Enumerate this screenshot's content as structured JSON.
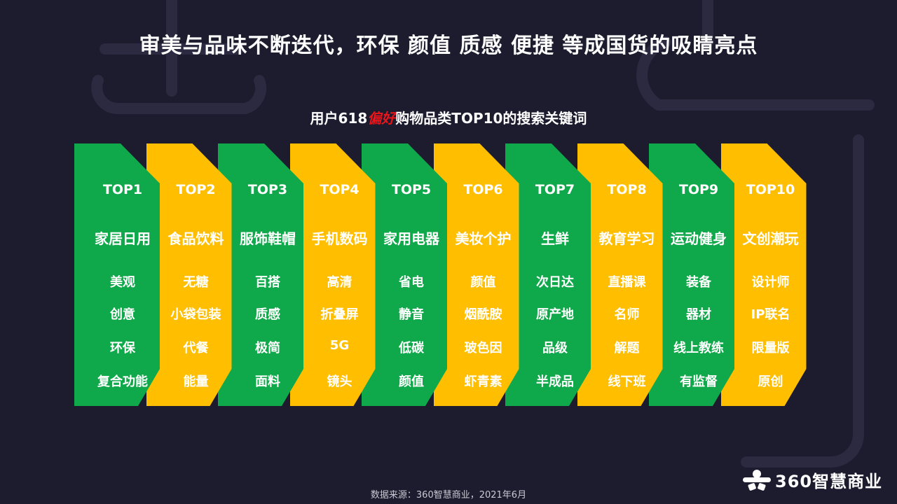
{
  "title": "审美与品味不断迭代，环保 颜值 质感 便捷 等成国货的吸睛亮点",
  "subtitle": {
    "prefix": "用户618",
    "highlight": "偏好",
    "suffix": "购物品类TOP10的搜索关键词"
  },
  "colors": {
    "green": "#0fa84a",
    "yellow": "#ffbf00",
    "highlight": "#e8151b",
    "background": "#1d1b2e"
  },
  "columns": [
    {
      "rank": "TOP1",
      "category": "家居日用",
      "keywords": [
        "美观",
        "创意",
        "环保",
        "复合功能"
      ],
      "color": "green"
    },
    {
      "rank": "TOP2",
      "category": "食品饮料",
      "keywords": [
        "无糖",
        "小袋包装",
        "代餐",
        "能量"
      ],
      "color": "yellow"
    },
    {
      "rank": "TOP3",
      "category": "服饰鞋帽",
      "keywords": [
        "百搭",
        "质感",
        "极简",
        "面料"
      ],
      "color": "green"
    },
    {
      "rank": "TOP4",
      "category": "手机数码",
      "keywords": [
        "高清",
        "折叠屏",
        "5G",
        "镜头"
      ],
      "color": "yellow"
    },
    {
      "rank": "TOP5",
      "category": "家用电器",
      "keywords": [
        "省电",
        "静音",
        "低碳",
        "颜值"
      ],
      "color": "green"
    },
    {
      "rank": "TOP6",
      "category": "美妆个护",
      "keywords": [
        "颜值",
        "烟酰胺",
        "玻色因",
        "虾青素"
      ],
      "color": "yellow"
    },
    {
      "rank": "TOP7",
      "category": "生鲜",
      "keywords": [
        "次日达",
        "原产地",
        "品级",
        "半成品"
      ],
      "color": "green"
    },
    {
      "rank": "TOP8",
      "category": "教育学习",
      "keywords": [
        "直播课",
        "名师",
        "解题",
        "线下班"
      ],
      "color": "yellow"
    },
    {
      "rank": "TOP9",
      "category": "运动健身",
      "keywords": [
        "装备",
        "器材",
        "线上教练",
        "有监督"
      ],
      "color": "green"
    },
    {
      "rank": "TOP10",
      "category": "文创潮玩",
      "keywords": [
        "设计师",
        "IP联名",
        "限量版",
        "原创"
      ],
      "color": "yellow"
    }
  ],
  "source": "数据来源：360智慧商业，2021年6月",
  "logo": {
    "text": "360智慧商业",
    "icon": "360-logo-icon"
  }
}
